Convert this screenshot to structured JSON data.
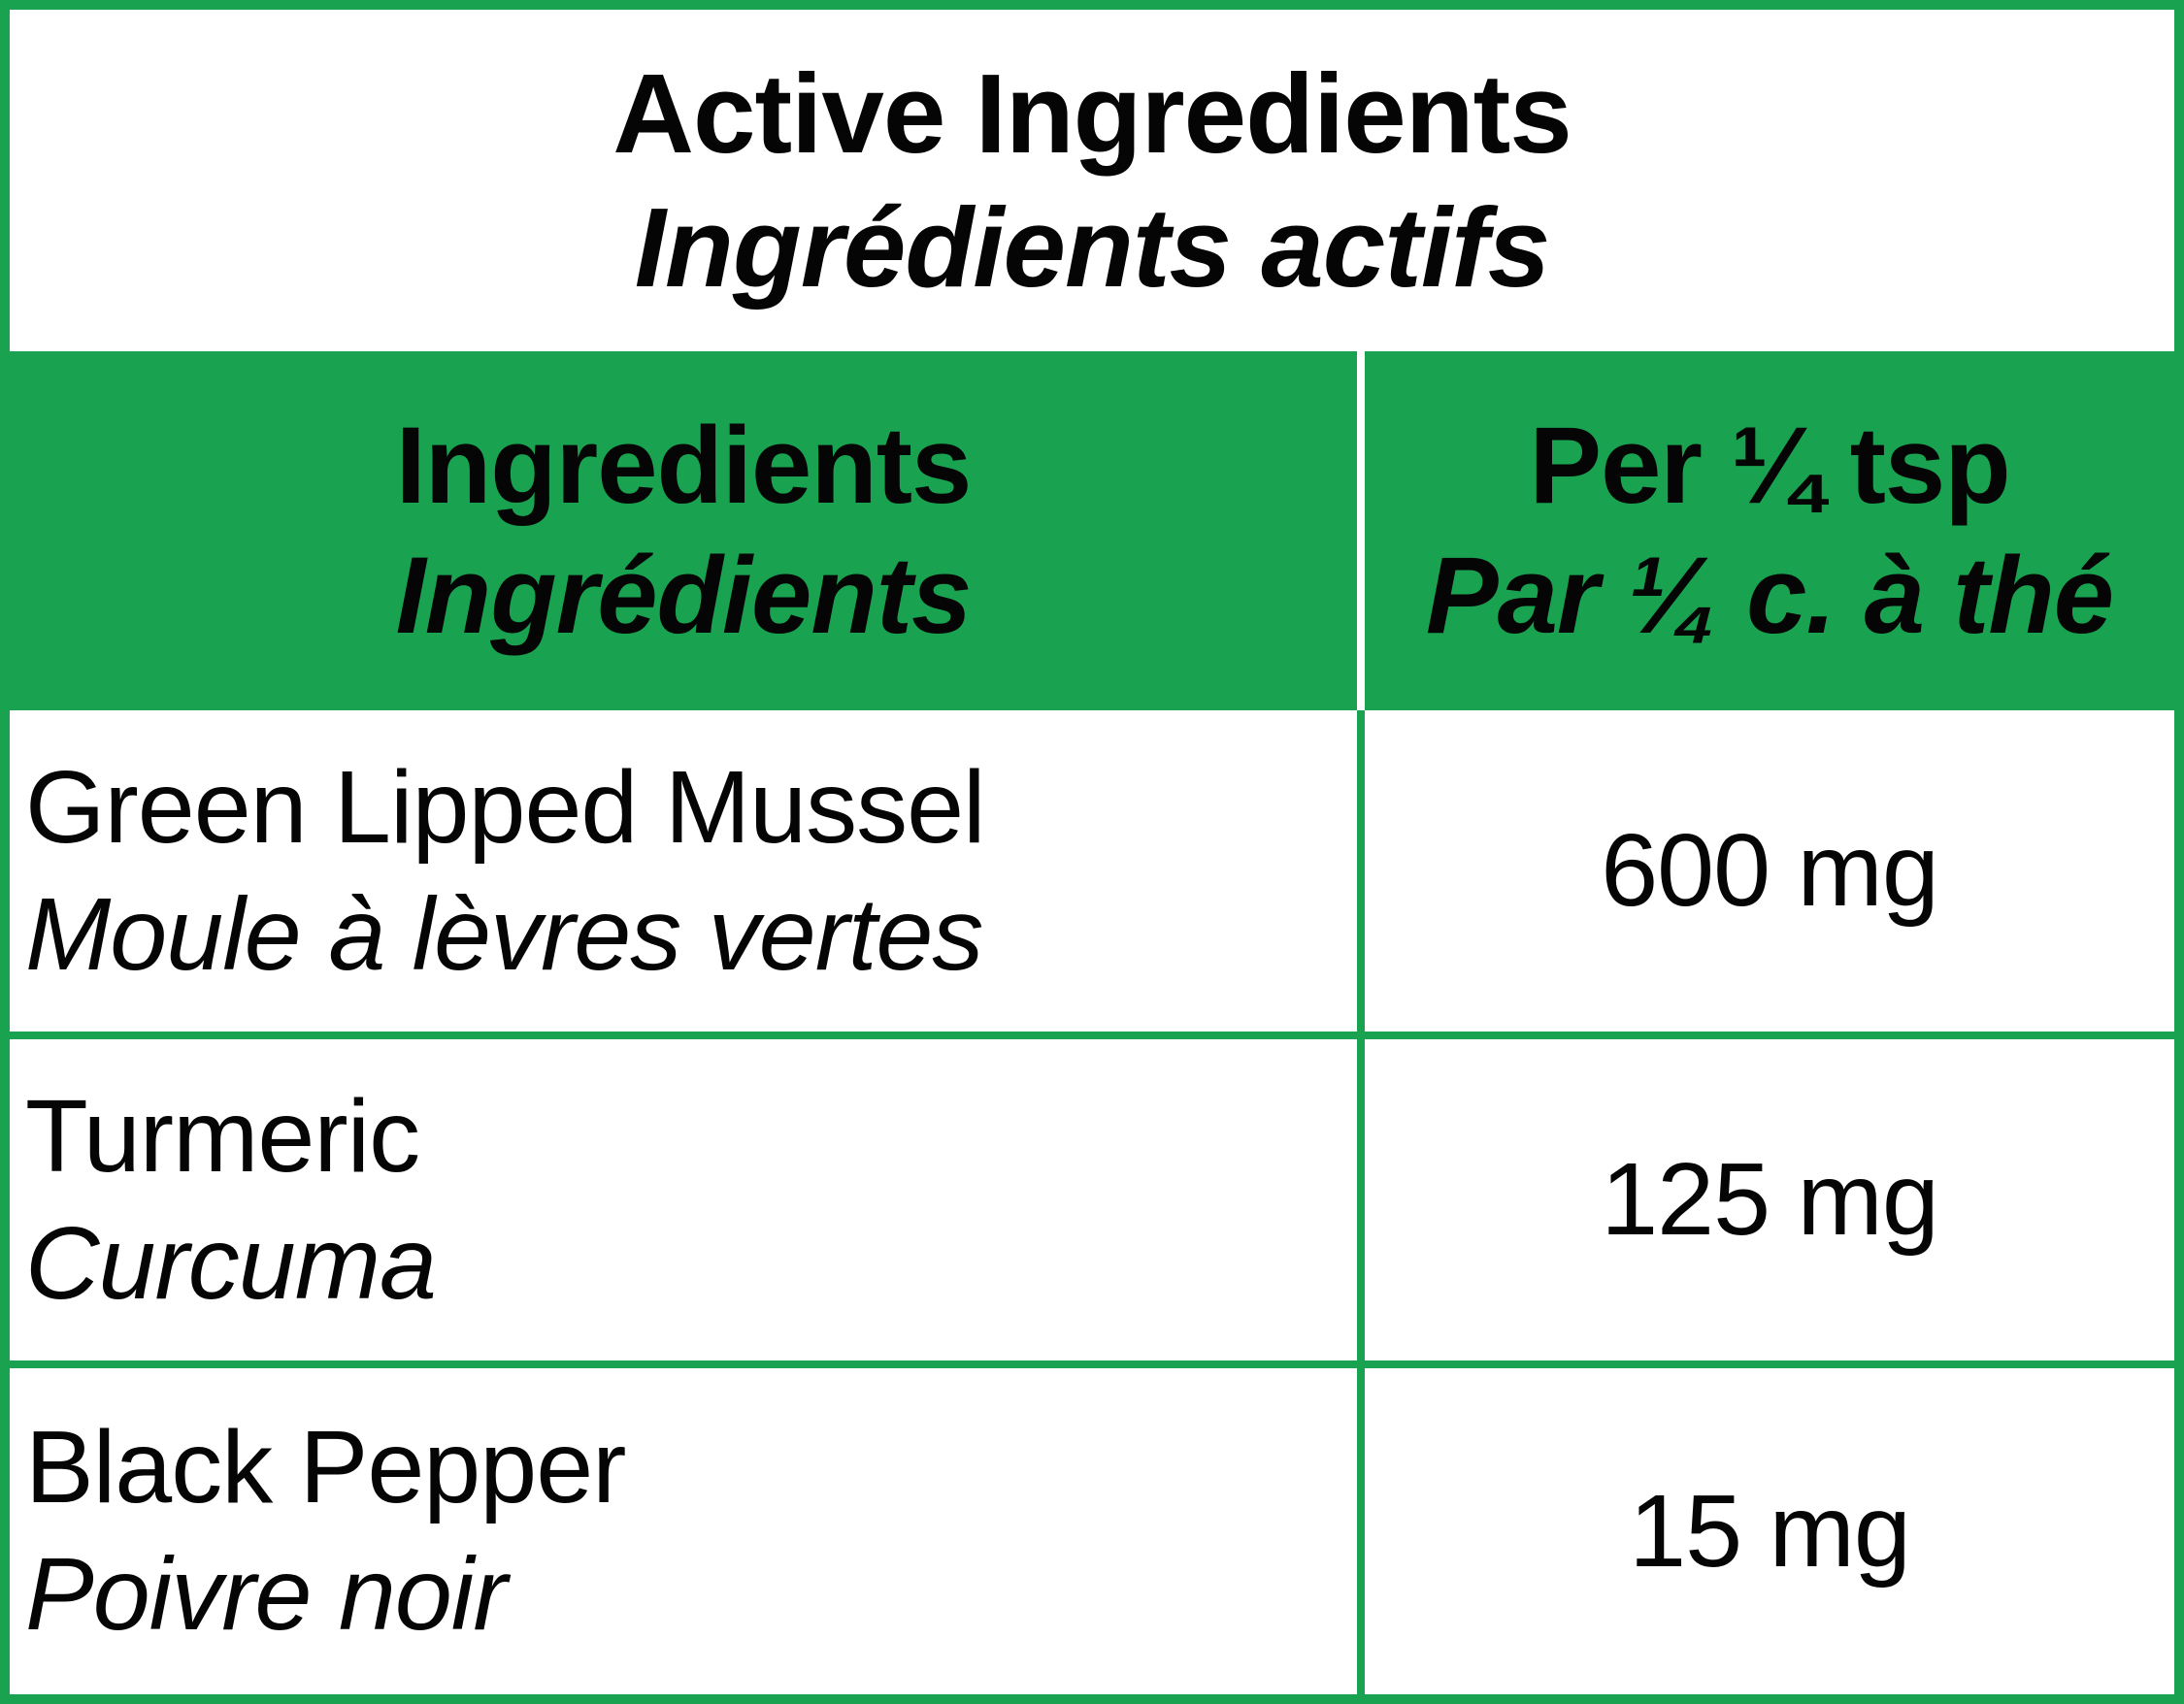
{
  "colors": {
    "accent_green": "#19a351",
    "text": "#050505",
    "background": "#ffffff"
  },
  "title": {
    "en": "Active Ingredients",
    "fr": "Ingrédients actifs"
  },
  "header": {
    "col1": {
      "en": "Ingredients",
      "fr": "Ingrédients"
    },
    "col2": {
      "en": "Per ¼ tsp",
      "fr": "Par ¼ c. à thé"
    }
  },
  "rows": [
    {
      "name_en": "Green Lipped Mussel",
      "name_fr": "Moule à lèvres vertes",
      "amount": "600 mg"
    },
    {
      "name_en": "Turmeric",
      "name_fr": "Curcuma",
      "amount": "125 mg"
    },
    {
      "name_en": "Black Pepper",
      "name_fr": "Poivre noir",
      "amount": "15 mg"
    }
  ]
}
